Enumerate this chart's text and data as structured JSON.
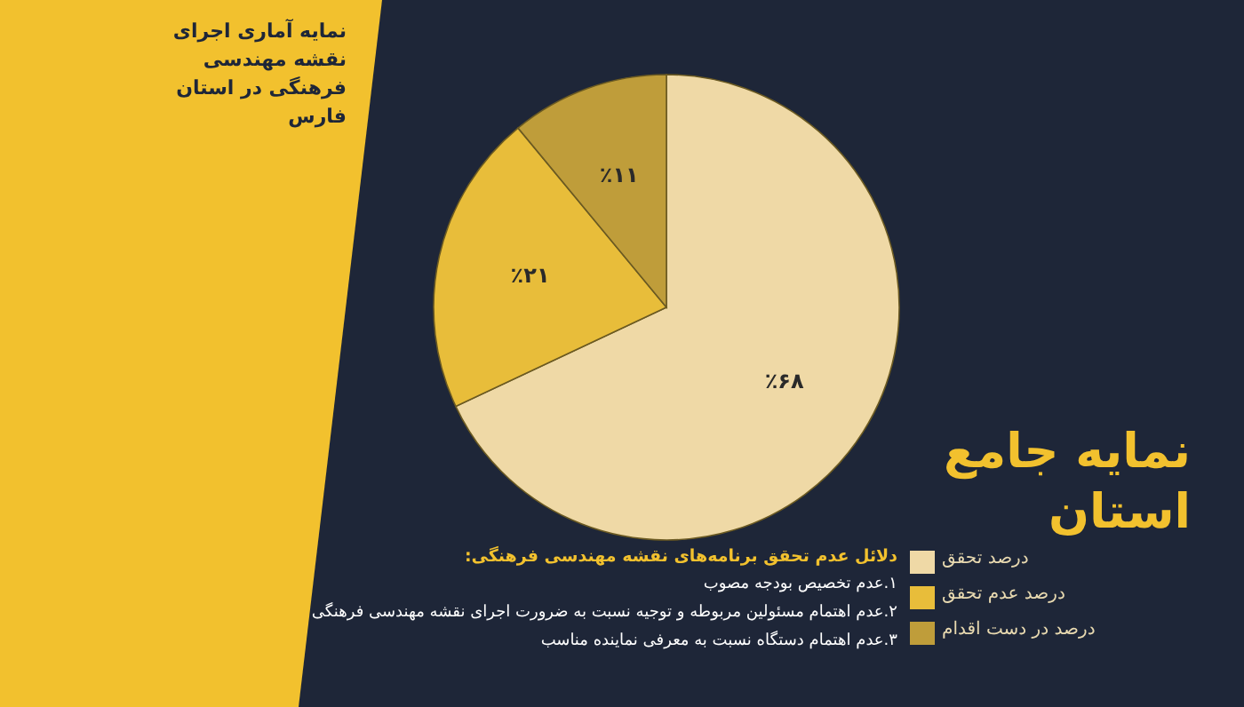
{
  "chart_data": {
    "type": "pie",
    "title": "نمایه آماری اجرای نقشه مهندسی فرهنگی در استان فارس",
    "subtitle": "نمایه جامع استان",
    "categories": [
      "درصد تحقق",
      "درصد عدم تحقق",
      "درصد در دست اقدام"
    ],
    "values": [
      68,
      21,
      11
    ],
    "colors": [
      "#efd9a6",
      "#e8bd3a",
      "#bf9d3a"
    ],
    "value_labels": [
      "٪۶۸",
      "٪۲۱",
      "٪۱۱"
    ],
    "legend": "bottom right",
    "annotations": [
      "دلائل عدم تحقق برنامه‌های نقشه مهندسی فرهنگی:",
      "۱.عدم تخصیص بودجه مصوب",
      "۲.عدم اهتمام مسئولین مربوطه و توجیه نسبت به ضرورت اجرای نقشه مهندسی فرهنگی",
      "۳.عدم اهتمام دستگاه نسبت به معرفی نماینده مناسب"
    ]
  }
}
